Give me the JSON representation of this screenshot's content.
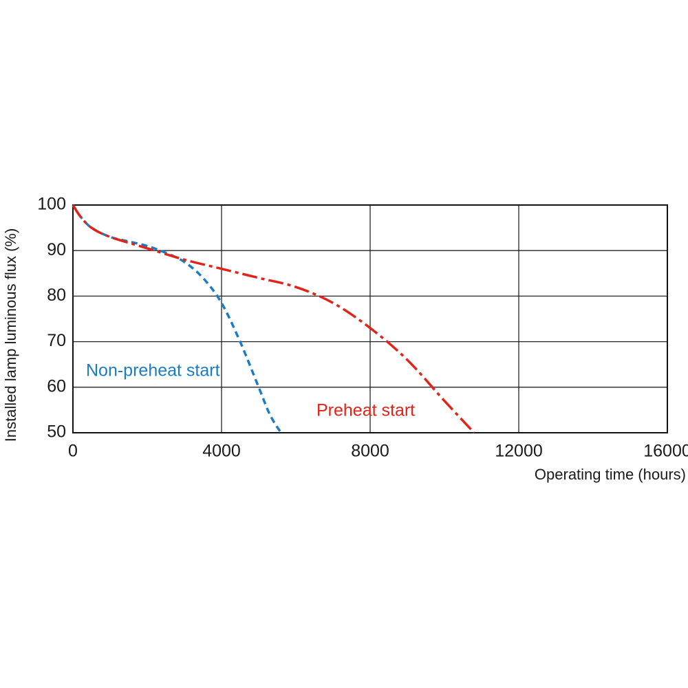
{
  "chart_data": {
    "type": "line",
    "x_label": "Operating time (hours)",
    "y_label": "Installed lamp luminous flux  (%)",
    "xlim": [
      0,
      16000
    ],
    "xticks": [
      0,
      4000,
      8000,
      12000,
      16000
    ],
    "ylim": [
      50,
      100
    ],
    "yticks": [
      50,
      60,
      70,
      80,
      90,
      100
    ],
    "grid": true,
    "series": [
      {
        "name": "Non-preheat start",
        "color": "#1b7cc6",
        "dash": "9,6",
        "x": [
          0,
          200,
          500,
          1000,
          1500,
          2000,
          2500,
          3000,
          3500,
          4000,
          4500,
          5000,
          5300,
          5600
        ],
        "values": [
          100,
          97.5,
          95,
          93,
          92,
          91,
          89.5,
          87.5,
          84,
          78.5,
          70,
          60,
          54,
          50
        ]
      },
      {
        "name": "Preheat start",
        "color": "#e2231a",
        "dash": "22,6,5,6",
        "x": [
          0,
          200,
          500,
          1000,
          2000,
          3000,
          4000,
          5000,
          6000,
          7000,
          8000,
          9000,
          10000,
          10800
        ],
        "values": [
          100,
          97.5,
          95,
          93,
          90.5,
          88,
          86,
          84,
          82,
          78.5,
          73,
          66,
          57,
          50
        ]
      }
    ]
  }
}
